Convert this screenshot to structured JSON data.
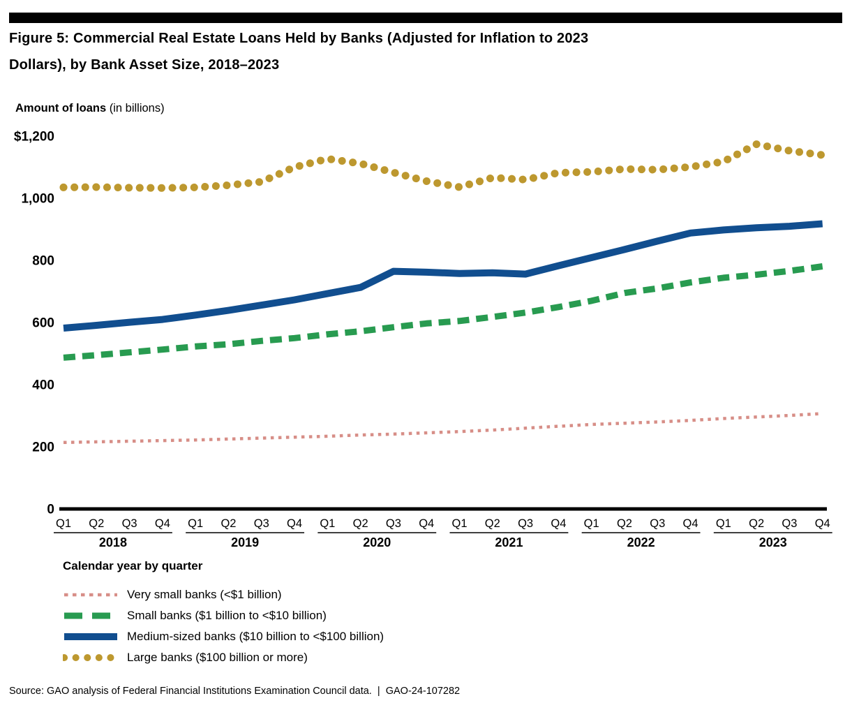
{
  "header": {
    "title_line1": "Figure 5: Commercial Real Estate Loans Held by Banks (Adjusted for Inflation to 2023",
    "title_line2": "Dollars), by Bank Asset Size, 2018–2023"
  },
  "y_axis": {
    "label_bold": "Amount of loans",
    "label_rest": " (in billions)",
    "ticks": [
      "$1,200",
      "1,000",
      "800",
      "600",
      "400",
      "200",
      "0"
    ],
    "tick_values": [
      1200,
      1000,
      800,
      600,
      400,
      200,
      0
    ]
  },
  "x_axis": {
    "label": "Calendar year by quarter",
    "years": [
      "2018",
      "2019",
      "2020",
      "2021",
      "2022",
      "2023"
    ],
    "quarter_labels": [
      "Q1",
      "Q2",
      "Q3",
      "Q4"
    ]
  },
  "chart_data": {
    "type": "line",
    "title": "Commercial Real Estate Loans Held by Banks, by Bank Asset Size, 2018-2023",
    "xlabel": "Calendar year by quarter",
    "ylabel": "Amount of loans (in billions)",
    "ylim": [
      0,
      1200
    ],
    "grid": false,
    "legend_position": "bottom-left",
    "x": [
      "2018 Q1",
      "2018 Q2",
      "2018 Q3",
      "2018 Q4",
      "2019 Q1",
      "2019 Q2",
      "2019 Q3",
      "2019 Q4",
      "2020 Q1",
      "2020 Q2",
      "2020 Q3",
      "2020 Q4",
      "2021 Q1",
      "2021 Q2",
      "2021 Q3",
      "2021 Q4",
      "2022 Q1",
      "2022 Q2",
      "2022 Q3",
      "2022 Q4",
      "2023 Q1",
      "2023 Q2",
      "2023 Q3",
      "2023 Q4"
    ],
    "series": [
      {
        "name": "Very small banks (<$1 billion)",
        "color": "#D78E87",
        "stroke_width": 4.5,
        "dash": "4.5 6.5",
        "legend_dash": "5.5 6.5",
        "linecap": "butt",
        "values": [
          214,
          216,
          218,
          220,
          222,
          225,
          228,
          231,
          234,
          238,
          241,
          245,
          249,
          254,
          260,
          266,
          272,
          276,
          280,
          285,
          291,
          296,
          301,
          307
        ]
      },
      {
        "name": "Small banks ($1 billion to <$10 billion)",
        "color": "#289B50",
        "stroke_width": 9,
        "dash": "17 10",
        "legend_dash": "26 14",
        "linecap": "butt",
        "values": [
          487,
          495,
          504,
          513,
          523,
          530,
          541,
          550,
          562,
          572,
          585,
          597,
          605,
          618,
          632,
          650,
          670,
          695,
          710,
          729,
          744,
          754,
          766,
          781
        ]
      },
      {
        "name": "Medium-sized banks ($10 billion to <$100 billion)",
        "color": "#114E8F",
        "stroke_width": 10,
        "dash": "",
        "legend_dash": "",
        "linecap": "butt",
        "values": [
          582,
          591,
          601,
          610,
          624,
          639,
          656,
          673,
          693,
          713,
          765,
          762,
          758,
          760,
          756,
          783,
          809,
          835,
          862,
          888,
          898,
          905,
          910,
          918
        ]
      },
      {
        "name": "Large banks ($100 billion or more)",
        "color": "#BD982F",
        "stroke_width": 11,
        "dash": "0.1 15.5",
        "legend_dash": "0.1 16.5",
        "linecap": "round",
        "values": [
          1035,
          1036,
          1034,
          1033,
          1035,
          1042,
          1053,
          1100,
          1127,
          1112,
          1083,
          1055,
          1036,
          1066,
          1060,
          1082,
          1085,
          1094,
          1092,
          1101,
          1118,
          1174,
          1153,
          1139
        ]
      }
    ]
  },
  "source": "Source: GAO analysis of Federal Financial Institutions Examination Council data.  |  GAO-24-107282",
  "colors": {
    "axis": "#000000",
    "background": "#ffffff"
  }
}
